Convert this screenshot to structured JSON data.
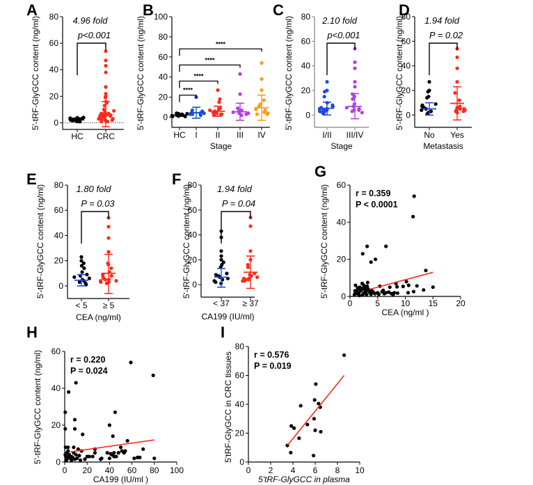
{
  "figure": {
    "ylabel_main": "5'-tRF-GlyGCC content (ng/ml)",
    "colors": {
      "black": "#000000",
      "red": "#ff2a1a",
      "blue": "#1f49e0",
      "purple": "#b23ee8",
      "orange": "#ff9a1a",
      "fit": "#ff2a1a",
      "grey_axis": "#808080"
    }
  },
  "chart_data": [
    {
      "panel": "A",
      "type": "scatter",
      "subtype": "dot-plot",
      "categories": [
        "HC",
        "CRC"
      ],
      "ylabel": "5'-tRF-GlyGCC content (ng/ml)",
      "xlabel": "",
      "ylim": [
        -5,
        80
      ],
      "yticks": [
        0,
        20,
        40,
        60,
        80
      ],
      "fold": "4.96 fold",
      "pvalue": "p<0.001",
      "reference_line": 0,
      "groups": [
        {
          "name": "HC",
          "color": "black",
          "mean": 2.2,
          "sd_high": 3.5,
          "sd_low": 1.0,
          "values": [
            1,
            1.5,
            2,
            2.2,
            2.5,
            3,
            3.5,
            4,
            1.2,
            1.8,
            2.6,
            3.2,
            0.8,
            2.9,
            3.8,
            1.6,
            2.1,
            2.7,
            3.3,
            1.1
          ]
        },
        {
          "name": "CRC",
          "color": "red",
          "mean": 6.0,
          "sd_high": 16,
          "sd_low": -3,
          "values": [
            54,
            47,
            43,
            38,
            27,
            27,
            22,
            20,
            19,
            16,
            15,
            13,
            10,
            9,
            8,
            7,
            6,
            6,
            5,
            5,
            4,
            4,
            3,
            3,
            3,
            2,
            2,
            1,
            1,
            5,
            6,
            7,
            4,
            3,
            2
          ]
        }
      ]
    },
    {
      "panel": "B",
      "type": "scatter",
      "subtype": "dot-plot",
      "categories": [
        "HC",
        "I",
        "II",
        "III",
        "IV"
      ],
      "xlabel": "Stage",
      "ylabel": "5'-tRF-GlyGCC content (ng/ml)",
      "ylim": [
        -10,
        100
      ],
      "yticks": [
        0,
        20,
        40,
        60,
        80,
        100
      ],
      "comparisons": [
        {
          "from": "HC",
          "to": "I",
          "label": "****"
        },
        {
          "from": "HC",
          "to": "II",
          "label": "****"
        },
        {
          "from": "HC",
          "to": "III",
          "label": "****"
        },
        {
          "from": "HC",
          "to": "IV",
          "label": "****"
        }
      ],
      "groups": [
        {
          "name": "HC",
          "color": "black",
          "mean": 2.2,
          "sd_high": 3.5,
          "sd_low": 1.0,
          "values": [
            1,
            1.5,
            2,
            2.5,
            3,
            3.5,
            4,
            1.2,
            2.8,
            3.6,
            0.8,
            2.2
          ]
        },
        {
          "name": "I",
          "color": "blue",
          "mean": 4.5,
          "sd_high": 10,
          "sd_low": -1,
          "values": [
            20,
            7,
            5,
            4,
            3,
            3,
            2,
            6,
            4
          ]
        },
        {
          "name": "II",
          "color": "red",
          "mean": 6,
          "sd_high": 11,
          "sd_low": 1,
          "values": [
            27,
            18,
            15,
            9,
            8,
            7,
            6,
            5,
            5,
            4,
            3,
            3,
            2
          ]
        },
        {
          "name": "III",
          "color": "purple",
          "mean": 5.5,
          "sd_high": 14,
          "sd_low": -3,
          "values": [
            43,
            23,
            9,
            7,
            6,
            5,
            4,
            4,
            3,
            2
          ]
        },
        {
          "name": "IV",
          "color": "orange",
          "mean": 9.5,
          "sd_high": 22,
          "sd_low": -3,
          "values": [
            54,
            38,
            27,
            17,
            13,
            11,
            8,
            7,
            6,
            5,
            4,
            3,
            3
          ]
        }
      ]
    },
    {
      "panel": "C",
      "type": "scatter",
      "subtype": "dot-plot",
      "categories": [
        "I/II",
        "III/IV"
      ],
      "xlabel": "Stage",
      "ylabel": "5'-tRF-GlyGCC content (ng/ml)",
      "ylim": [
        -10,
        80
      ],
      "yticks": [
        0,
        20,
        40,
        60,
        80
      ],
      "fold": "2.10 fold",
      "pvalue": "p<0.001",
      "groups": [
        {
          "name": "I/II",
          "color": "blue",
          "mean": 5.5,
          "sd_high": 10.5,
          "sd_low": 0,
          "values": [
            27,
            20,
            19,
            15,
            10,
            8,
            7,
            6,
            5,
            5,
            4,
            4,
            3,
            3,
            2,
            1
          ]
        },
        {
          "name": "III/IV",
          "color": "purple",
          "mean": 7,
          "sd_high": 17.5,
          "sd_low": -3,
          "values": [
            54,
            43,
            38,
            27,
            23,
            17,
            15,
            13,
            9,
            7,
            6,
            5,
            4,
            4,
            3,
            2
          ]
        }
      ]
    },
    {
      "panel": "D",
      "type": "scatter",
      "subtype": "dot-plot",
      "categories": [
        "No",
        "Yes"
      ],
      "xlabel": "Metastasis",
      "ylabel": "5'-tRF-GlyGCC content (ng/ml)",
      "ylim": [
        -10,
        80
      ],
      "yticks": [
        0,
        20,
        40,
        60,
        80
      ],
      "fold": "1.94 fold",
      "pvalue": "P = 0.02",
      "groups": [
        {
          "name": "No",
          "color": "black",
          "error_color": "blue",
          "mean": 5,
          "sd_high": 10,
          "sd_low": 0,
          "values": [
            27,
            20,
            19,
            15,
            14,
            9,
            8,
            7,
            6,
            5,
            4,
            3,
            2,
            1
          ]
        },
        {
          "name": "Yes",
          "color": "red",
          "mean": 9.5,
          "sd_high": 23,
          "sd_low": -4,
          "values": [
            54,
            47,
            38,
            27,
            18,
            12,
            7,
            6,
            5,
            5,
            4,
            4,
            3,
            3,
            2
          ]
        }
      ]
    },
    {
      "panel": "E",
      "type": "scatter",
      "subtype": "dot-plot",
      "categories": [
        "< 5",
        "≥ 5"
      ],
      "xlabel": "CEA (ng/ml)",
      "ylabel": "5'-tRF-GlyGCC content (ng/ml)",
      "ylim": [
        -10,
        80
      ],
      "yticks": [
        0,
        20,
        40,
        60,
        80
      ],
      "fold": "1.80 fold",
      "pvalue": "P = 0.03",
      "groups": [
        {
          "name": "< 5",
          "color": "black",
          "error_color": "blue",
          "mean": 4.5,
          "sd_high": 9,
          "sd_low": 0,
          "values": [
            23,
            20,
            18,
            16,
            14,
            11,
            9,
            8,
            7,
            6,
            5,
            4,
            3,
            2,
            1
          ]
        },
        {
          "name": "≥ 5",
          "color": "red",
          "mean": 10,
          "sd_high": 25,
          "sd_low": -6,
          "values": [
            54,
            47,
            38,
            27,
            27,
            18,
            17,
            14,
            11,
            9,
            8,
            7,
            6,
            5,
            5,
            4,
            4,
            3,
            3,
            2
          ]
        }
      ]
    },
    {
      "panel": "F",
      "type": "scatter",
      "subtype": "dot-plot",
      "categories": [
        "< 37",
        "≥ 37"
      ],
      "xlabel": "CA199 (IU/ml)",
      "ylabel": "5'-tRF-GlyGCC content (ng/ml)",
      "ylim": [
        -10,
        80
      ],
      "yticks": [
        0,
        20,
        40,
        60,
        80
      ],
      "fold": "1.94 fold",
      "pvalue": "P = 0.04",
      "groups": [
        {
          "name": "< 37",
          "color": "black",
          "error_color": "blue",
          "mean": 6,
          "sd_high": 13,
          "sd_low": -2,
          "values": [
            43,
            38,
            27,
            23,
            20,
            18,
            16,
            14,
            9,
            8,
            7,
            6,
            5,
            4,
            3,
            2,
            1
          ]
        },
        {
          "name": "≥ 37",
          "color": "red",
          "mean": 10,
          "sd_high": 23,
          "sd_low": -3,
          "values": [
            54,
            47,
            27,
            20,
            16,
            14,
            9,
            8,
            7,
            6,
            5,
            5,
            4,
            4,
            3,
            3
          ]
        }
      ]
    },
    {
      "panel": "G",
      "type": "scatter",
      "xlabel": "CEA (ng/ml )",
      "ylabel": "5'-tRF-GlyGCC content (ng/ml)",
      "xlim": [
        0,
        20
      ],
      "ylim": [
        0,
        60
      ],
      "xticks": [
        0,
        5,
        10,
        15,
        20
      ],
      "yticks": [
        0,
        20,
        40,
        60
      ],
      "r": "r = 0.359",
      "pvalue": "P < 0.0001",
      "fit_line": {
        "x": [
          3.5,
          15
        ],
        "y": [
          3.8,
          13
        ]
      },
      "points": [
        [
          11.6,
          54
        ],
        [
          11.4,
          43
        ],
        [
          3.1,
          27
        ],
        [
          6.5,
          27
        ],
        [
          2.3,
          23
        ],
        [
          3.8,
          18.5
        ],
        [
          4.6,
          20
        ],
        [
          13.7,
          14
        ],
        [
          10.2,
          8
        ],
        [
          8.3,
          7
        ],
        [
          5.4,
          5.5
        ],
        [
          12.1,
          5.7
        ],
        [
          10.6,
          6
        ],
        [
          9.6,
          5.4
        ],
        [
          8.5,
          5.2
        ],
        [
          15,
          5
        ],
        [
          7.2,
          5
        ],
        [
          13.3,
          3.5
        ],
        [
          11.5,
          2.6
        ],
        [
          10.5,
          2
        ],
        [
          8.6,
          1.8
        ],
        [
          6,
          3.3
        ],
        [
          6.5,
          2
        ],
        [
          7,
          2.3
        ],
        [
          7.5,
          1.5
        ],
        [
          8,
          2
        ],
        [
          5.8,
          2.5
        ],
        [
          5,
          2
        ],
        [
          4.5,
          1.5
        ],
        [
          4,
          3
        ],
        [
          3.6,
          2
        ],
        [
          3.2,
          7.5
        ],
        [
          2.8,
          5
        ],
        [
          2.5,
          6
        ],
        [
          2.2,
          7
        ],
        [
          1.8,
          5
        ],
        [
          1.5,
          4
        ],
        [
          1.2,
          3
        ],
        [
          1,
          2
        ],
        [
          0.8,
          1
        ],
        [
          1,
          6
        ],
        [
          1.4,
          4.5
        ],
        [
          2,
          3
        ],
        [
          2.6,
          2
        ],
        [
          3,
          1
        ],
        [
          3.3,
          4
        ],
        [
          3.5,
          3
        ],
        [
          2.3,
          1
        ],
        [
          1.7,
          0.5
        ],
        [
          2.9,
          2.5
        ],
        [
          1.3,
          1.5
        ],
        [
          0.9,
          3
        ],
        [
          2.1,
          4
        ],
        [
          3.8,
          1.2
        ],
        [
          4.2,
          2.3
        ],
        [
          5.2,
          1.2
        ],
        [
          6.2,
          1.5
        ],
        [
          7.8,
          1
        ],
        [
          1.6,
          2
        ],
        [
          2.7,
          3.6
        ],
        [
          3.1,
          5.5
        ],
        [
          2.4,
          4.3
        ]
      ]
    },
    {
      "panel": "H",
      "type": "scatter",
      "xlabel": "CA199 (IU/ml )",
      "ylabel": "5'-tRF-GlyGCC content (ng/ml)",
      "xlim": [
        0,
        100
      ],
      "ylim": [
        0,
        60
      ],
      "xticks": [
        0,
        20,
        40,
        60,
        80,
        100
      ],
      "yticks": [
        0,
        20,
        40,
        60
      ],
      "r": "r = 0.220",
      "pvalue": "P = 0.024",
      "fit_line": {
        "x": [
          5,
          80
        ],
        "y": [
          5.5,
          12
        ]
      },
      "points": [
        [
          59,
          54
        ],
        [
          79,
          47
        ],
        [
          10,
          43
        ],
        [
          3.5,
          38
        ],
        [
          45,
          27
        ],
        [
          0.5,
          27
        ],
        [
          9,
          23
        ],
        [
          40,
          20
        ],
        [
          9,
          18
        ],
        [
          0.5,
          18
        ],
        [
          16,
          15
        ],
        [
          43,
          14
        ],
        [
          56,
          11.5
        ],
        [
          70,
          7
        ],
        [
          27,
          7
        ],
        [
          12,
          7
        ],
        [
          3,
          8
        ],
        [
          8,
          8
        ],
        [
          0.8,
          8
        ],
        [
          15,
          6
        ],
        [
          20,
          3
        ],
        [
          25,
          3
        ],
        [
          27,
          5
        ],
        [
          33,
          2
        ],
        [
          38,
          5
        ],
        [
          40,
          2
        ],
        [
          42,
          4
        ],
        [
          44,
          5
        ],
        [
          46,
          3
        ],
        [
          48,
          5
        ],
        [
          50,
          8
        ],
        [
          51,
          6
        ],
        [
          53,
          5
        ],
        [
          54,
          6
        ],
        [
          62,
          2
        ],
        [
          65,
          2.5
        ],
        [
          67,
          2.5
        ],
        [
          80,
          2
        ],
        [
          32,
          1.5
        ],
        [
          18,
          1.5
        ],
        [
          14,
          1
        ],
        [
          11,
          2
        ],
        [
          10,
          4
        ],
        [
          8,
          5
        ],
        [
          6,
          3
        ],
        [
          5,
          2
        ],
        [
          4,
          4
        ],
        [
          3,
          6
        ],
        [
          2,
          5
        ],
        [
          1,
          3
        ],
        [
          0.5,
          4
        ],
        [
          1.5,
          1
        ],
        [
          2.5,
          2
        ],
        [
          3.5,
          3
        ],
        [
          6,
          1
        ],
        [
          7,
          2.5
        ],
        [
          9,
          1.5
        ],
        [
          13,
          3.5
        ],
        [
          44,
          3
        ],
        [
          22,
          3
        ],
        [
          41,
          4.5
        ]
      ]
    },
    {
      "panel": "I",
      "type": "scatter",
      "xlabel": "5'tRF-GlyGCC in plasma",
      "ylabel": "5'tRF-GlyGCC in CRC tissues",
      "xlim": [
        0,
        10
      ],
      "ylim": [
        0,
        80
      ],
      "xticks": [
        0,
        2,
        4,
        6,
        8,
        10
      ],
      "yticks": [
        0,
        20,
        40,
        60,
        80
      ],
      "r": "r = 0.576",
      "pvalue": "P = 0.019",
      "fit_line": {
        "x": [
          3.5,
          8.6
        ],
        "y": [
          11.5,
          60
        ]
      },
      "points": [
        [
          8.6,
          74
        ],
        [
          6.05,
          54
        ],
        [
          5.95,
          43
        ],
        [
          6.3,
          40.5
        ],
        [
          6.45,
          38
        ],
        [
          4.7,
          39
        ],
        [
          5.9,
          30
        ],
        [
          3.85,
          25
        ],
        [
          4.1,
          23.5
        ],
        [
          5.3,
          26
        ],
        [
          6.0,
          22
        ],
        [
          6.5,
          21
        ],
        [
          4.55,
          16.5
        ],
        [
          3.5,
          11.5
        ],
        [
          3.8,
          6.5
        ],
        [
          5.85,
          4.5
        ]
      ]
    }
  ]
}
